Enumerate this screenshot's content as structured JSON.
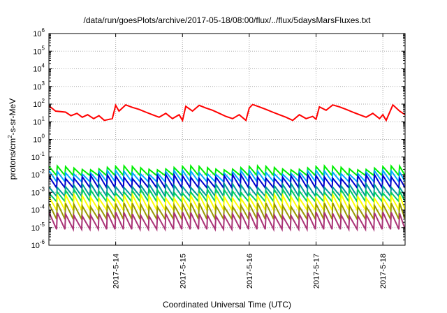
{
  "chart_data": {
    "type": "line",
    "title": "/data/run/goesPlots/archive/2017-05-18/08:00/flux/../flux/5daysMarsFluxes.txt",
    "xlabel": "Coordinated Universal Time (UTC)",
    "ylabel": {
      "main": "protons/cm",
      "sup": "2",
      "rest": "-s-sr-MeV"
    },
    "y_scale": "log",
    "ylim": [
      1e-06,
      1000000.0
    ],
    "y_ticks": [
      {
        "base": "10",
        "exp": "-6"
      },
      {
        "base": "10",
        "exp": "-5"
      },
      {
        "base": "10",
        "exp": "-4"
      },
      {
        "base": "10",
        "exp": "-3"
      },
      {
        "base": "10",
        "exp": "-2"
      },
      {
        "base": "10",
        "exp": "-1"
      },
      {
        "base": "10",
        "exp": "0"
      },
      {
        "base": "10",
        "exp": "1"
      },
      {
        "base": "10",
        "exp": "2"
      },
      {
        "base": "10",
        "exp": "3"
      },
      {
        "base": "10",
        "exp": "4"
      },
      {
        "base": "10",
        "exp": "5"
      },
      {
        "base": "10",
        "exp": "6"
      }
    ],
    "xlim": [
      "2017-05-13 00:00",
      "2017-05-18 08:00"
    ],
    "x_ticks": [
      "2017-5-14",
      "2017-5-15",
      "2017-5-16",
      "2017-5-17",
      "2017-5-18"
    ],
    "x_tick_days": [
      1,
      2,
      3,
      4,
      5
    ],
    "x_range_days": [
      0,
      5.333
    ],
    "grid": true,
    "legend": "none",
    "series": [
      {
        "color": "#ff0000",
        "x_days": [
          0,
          0.1,
          0.25,
          0.33,
          0.42,
          0.5,
          0.58,
          0.67,
          0.75,
          0.83,
          0.95,
          1.0,
          1.05,
          1.15,
          1.25,
          1.35,
          1.45,
          1.55,
          1.65,
          1.75,
          1.85,
          1.95,
          2.0,
          2.05,
          2.15,
          2.25,
          2.35,
          2.45,
          2.55,
          2.65,
          2.75,
          2.85,
          2.95,
          3.0,
          3.05,
          3.15,
          3.25,
          3.35,
          3.45,
          3.55,
          3.65,
          3.75,
          3.85,
          3.95,
          4.0,
          4.05,
          4.15,
          4.25,
          4.35,
          4.45,
          4.55,
          4.65,
          4.75,
          4.85,
          4.95,
          5.0,
          5.05,
          5.15,
          5.25,
          5.333
        ],
        "values": [
          80,
          40,
          35,
          22,
          30,
          18,
          25,
          15,
          22,
          12,
          15,
          85,
          40,
          90,
          65,
          50,
          35,
          25,
          18,
          30,
          15,
          25,
          12,
          75,
          40,
          85,
          60,
          45,
          30,
          20,
          15,
          25,
          12,
          60,
          95,
          70,
          50,
          35,
          25,
          18,
          12,
          25,
          15,
          20,
          14,
          70,
          45,
          90,
          70,
          50,
          35,
          25,
          18,
          30,
          15,
          25,
          12,
          90,
          40,
          25
        ]
      },
      {
        "color": "#00ee00",
        "base": 0.025,
        "trough": 0.009
      },
      {
        "color": "#00aaff",
        "base": 0.014,
        "trough": 0.004
      },
      {
        "color": "#0000cc",
        "base": 0.008,
        "trough": 0.0018
      },
      {
        "color": "#009999",
        "base": 0.0025,
        "trough": 0.0006
      },
      {
        "color": "#00cc66",
        "base": 0.0012,
        "trough": 0.0003
      },
      {
        "color": "#ffff00",
        "base": 0.0006,
        "trough": 0.0001
      },
      {
        "color": "#999900",
        "base": 0.0002,
        "trough": 3e-05
      },
      {
        "color": "#aa3377",
        "base": 6e-05,
        "trough": 8e-06
      }
    ],
    "low_series_period_days": 0.125
  }
}
